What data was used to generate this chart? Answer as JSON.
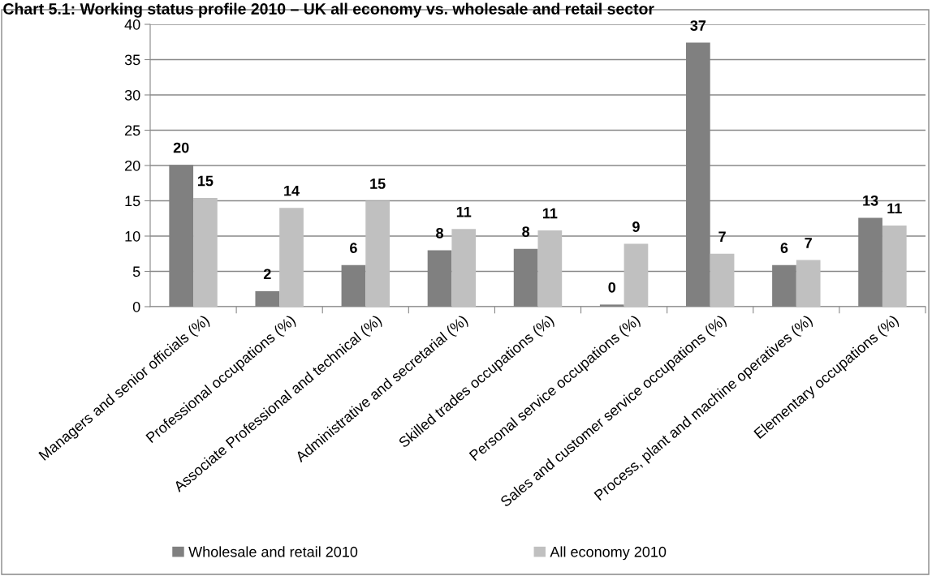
{
  "chart_data": {
    "type": "bar",
    "title": "Chart 5.1: Working status profile 2010 – UK all economy vs. wholesale and retail sector",
    "categories": [
      "Managers and senior officials (%)",
      "Professional occupations (%)",
      "Associate Professional and technical (%)",
      "Administrative and secretarial (%)",
      "Skilled trades occupations (%)",
      "Personal service occupations (%)",
      "Sales and customer service occupations (%)",
      "Process, plant and machine operatives (%)",
      "Elementary occupations (%)"
    ],
    "series": [
      {
        "name": "Wholesale and retail 2010",
        "color": "#808080",
        "values": [
          20.1,
          2.2,
          5.9,
          8.0,
          8.2,
          0.3,
          37.4,
          5.9,
          12.6
        ],
        "value_labels": [
          "20",
          "2",
          "6",
          "8",
          "8",
          "0",
          "37",
          "6",
          "13"
        ]
      },
      {
        "name": "All economy 2010",
        "color": "#c0c0c0",
        "values": [
          15.4,
          14.0,
          15.0,
          11.0,
          10.8,
          8.9,
          7.5,
          6.6,
          11.5
        ],
        "value_labels": [
          "15",
          "14",
          "15",
          "11",
          "11",
          "9",
          "7",
          "7",
          "11"
        ]
      }
    ],
    "ylim": [
      0,
      40
    ],
    "yticks": [
      0,
      5,
      10,
      15,
      20,
      25,
      30,
      35,
      40
    ],
    "grid": "y",
    "legend": "bottom"
  }
}
